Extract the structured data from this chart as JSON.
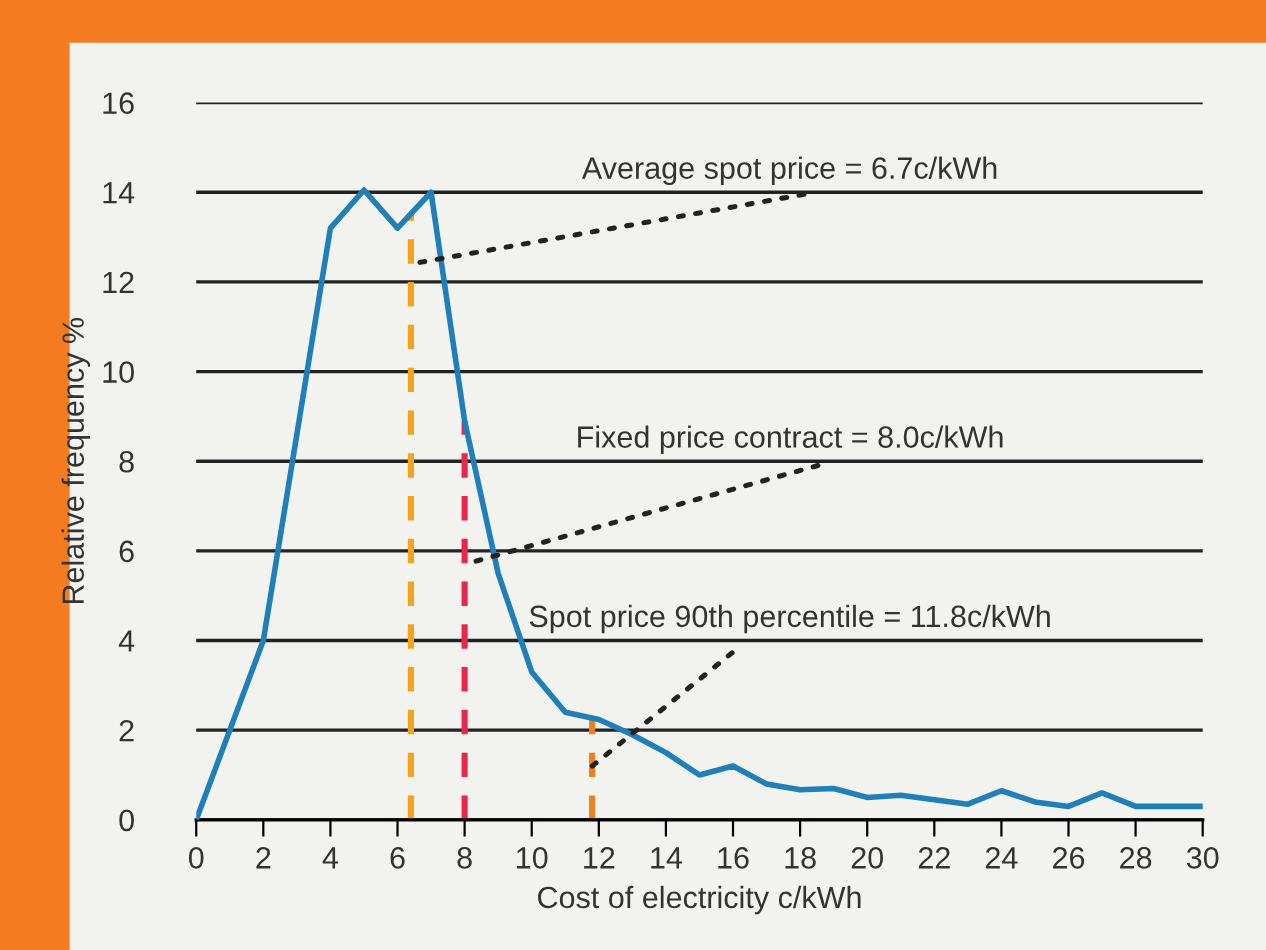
{
  "chart_data": {
    "type": "line",
    "xlabel": "Cost of electricity c/kWh",
    "ylabel": "Relative frequency %",
    "series": [
      {
        "color": "#1f7fb8",
        "x": [
          0,
          2,
          4,
          5,
          6,
          7,
          8,
          9,
          10,
          11,
          12,
          13,
          14,
          15,
          16,
          17,
          18,
          19,
          20,
          21,
          22,
          23,
          24,
          25,
          26,
          27,
          28,
          30
        ],
        "values": [
          0,
          4.0,
          13.2,
          14.05,
          13.2,
          14.0,
          8.9,
          5.5,
          3.3,
          2.4,
          2.24,
          1.9,
          1.5,
          1.0,
          1.2,
          0.8,
          0.67,
          0.7,
          0.5,
          0.55,
          0.45,
          0.35,
          0.65,
          0.4,
          0.3,
          0.6,
          0.3,
          0.3
        ]
      }
    ],
    "xlim": [
      0,
      30
    ],
    "xticks": [
      0,
      2,
      4,
      6,
      8,
      10,
      12,
      14,
      16,
      18,
      20,
      22,
      24,
      26,
      28,
      30
    ],
    "ylim": [
      0,
      16
    ],
    "yticks": [
      0,
      2,
      4,
      6,
      8,
      10,
      12,
      14,
      16
    ],
    "grid": "y",
    "marker": "none",
    "line_style": "solid",
    "ref_lines": [
      {
        "axis": "x",
        "value": 6.4,
        "color": "#f5a31a",
        "line_style": "dashed"
      },
      {
        "axis": "x",
        "value": 8.0,
        "color": "#e8264f",
        "line_style": "dashed"
      },
      {
        "axis": "x",
        "value": 11.8,
        "color": "#f07f1f",
        "line_style": "dashed"
      }
    ],
    "annotations": [
      {
        "text": "Average spot price = 6.7c/kWh",
        "x": 6.4,
        "y": 12.4
      },
      {
        "text": "Fixed price contract = 8.0c/kWh",
        "x": 8.0,
        "y": 5.7
      },
      {
        "text": "Spot price 90th percentile = 11.8c/kWh",
        "x": 11.8,
        "y": 1.2
      }
    ]
  }
}
